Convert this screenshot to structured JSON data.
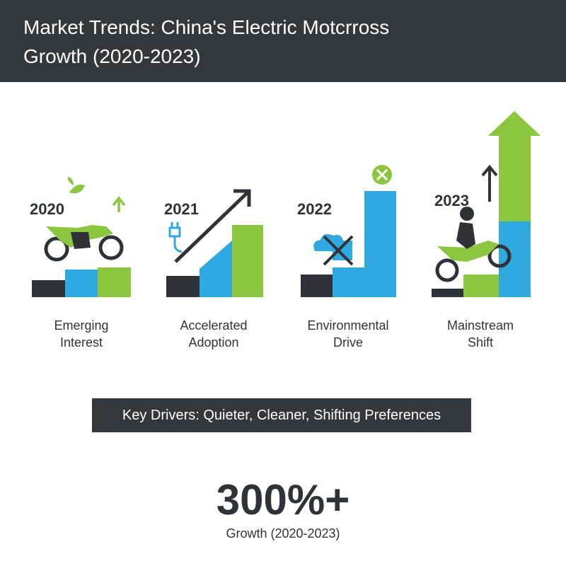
{
  "header": {
    "title": "Market Trends: China's Electric Motcrross Growth (2020-2023)"
  },
  "panels": [
    {
      "year": "2020",
      "label": "Emerging Interest"
    },
    {
      "year": "2021",
      "label": "Accelerated Adoption"
    },
    {
      "year": "2022",
      "label": "Environmental Drive"
    },
    {
      "year": "2023",
      "label": "Mainstream Shift"
    }
  ],
  "key_drivers": "Key Drivers: Quieter, Cleaner, Shifting Preferences",
  "stat": {
    "value": "300%+",
    "label": "Growth (2020-2023)"
  }
}
